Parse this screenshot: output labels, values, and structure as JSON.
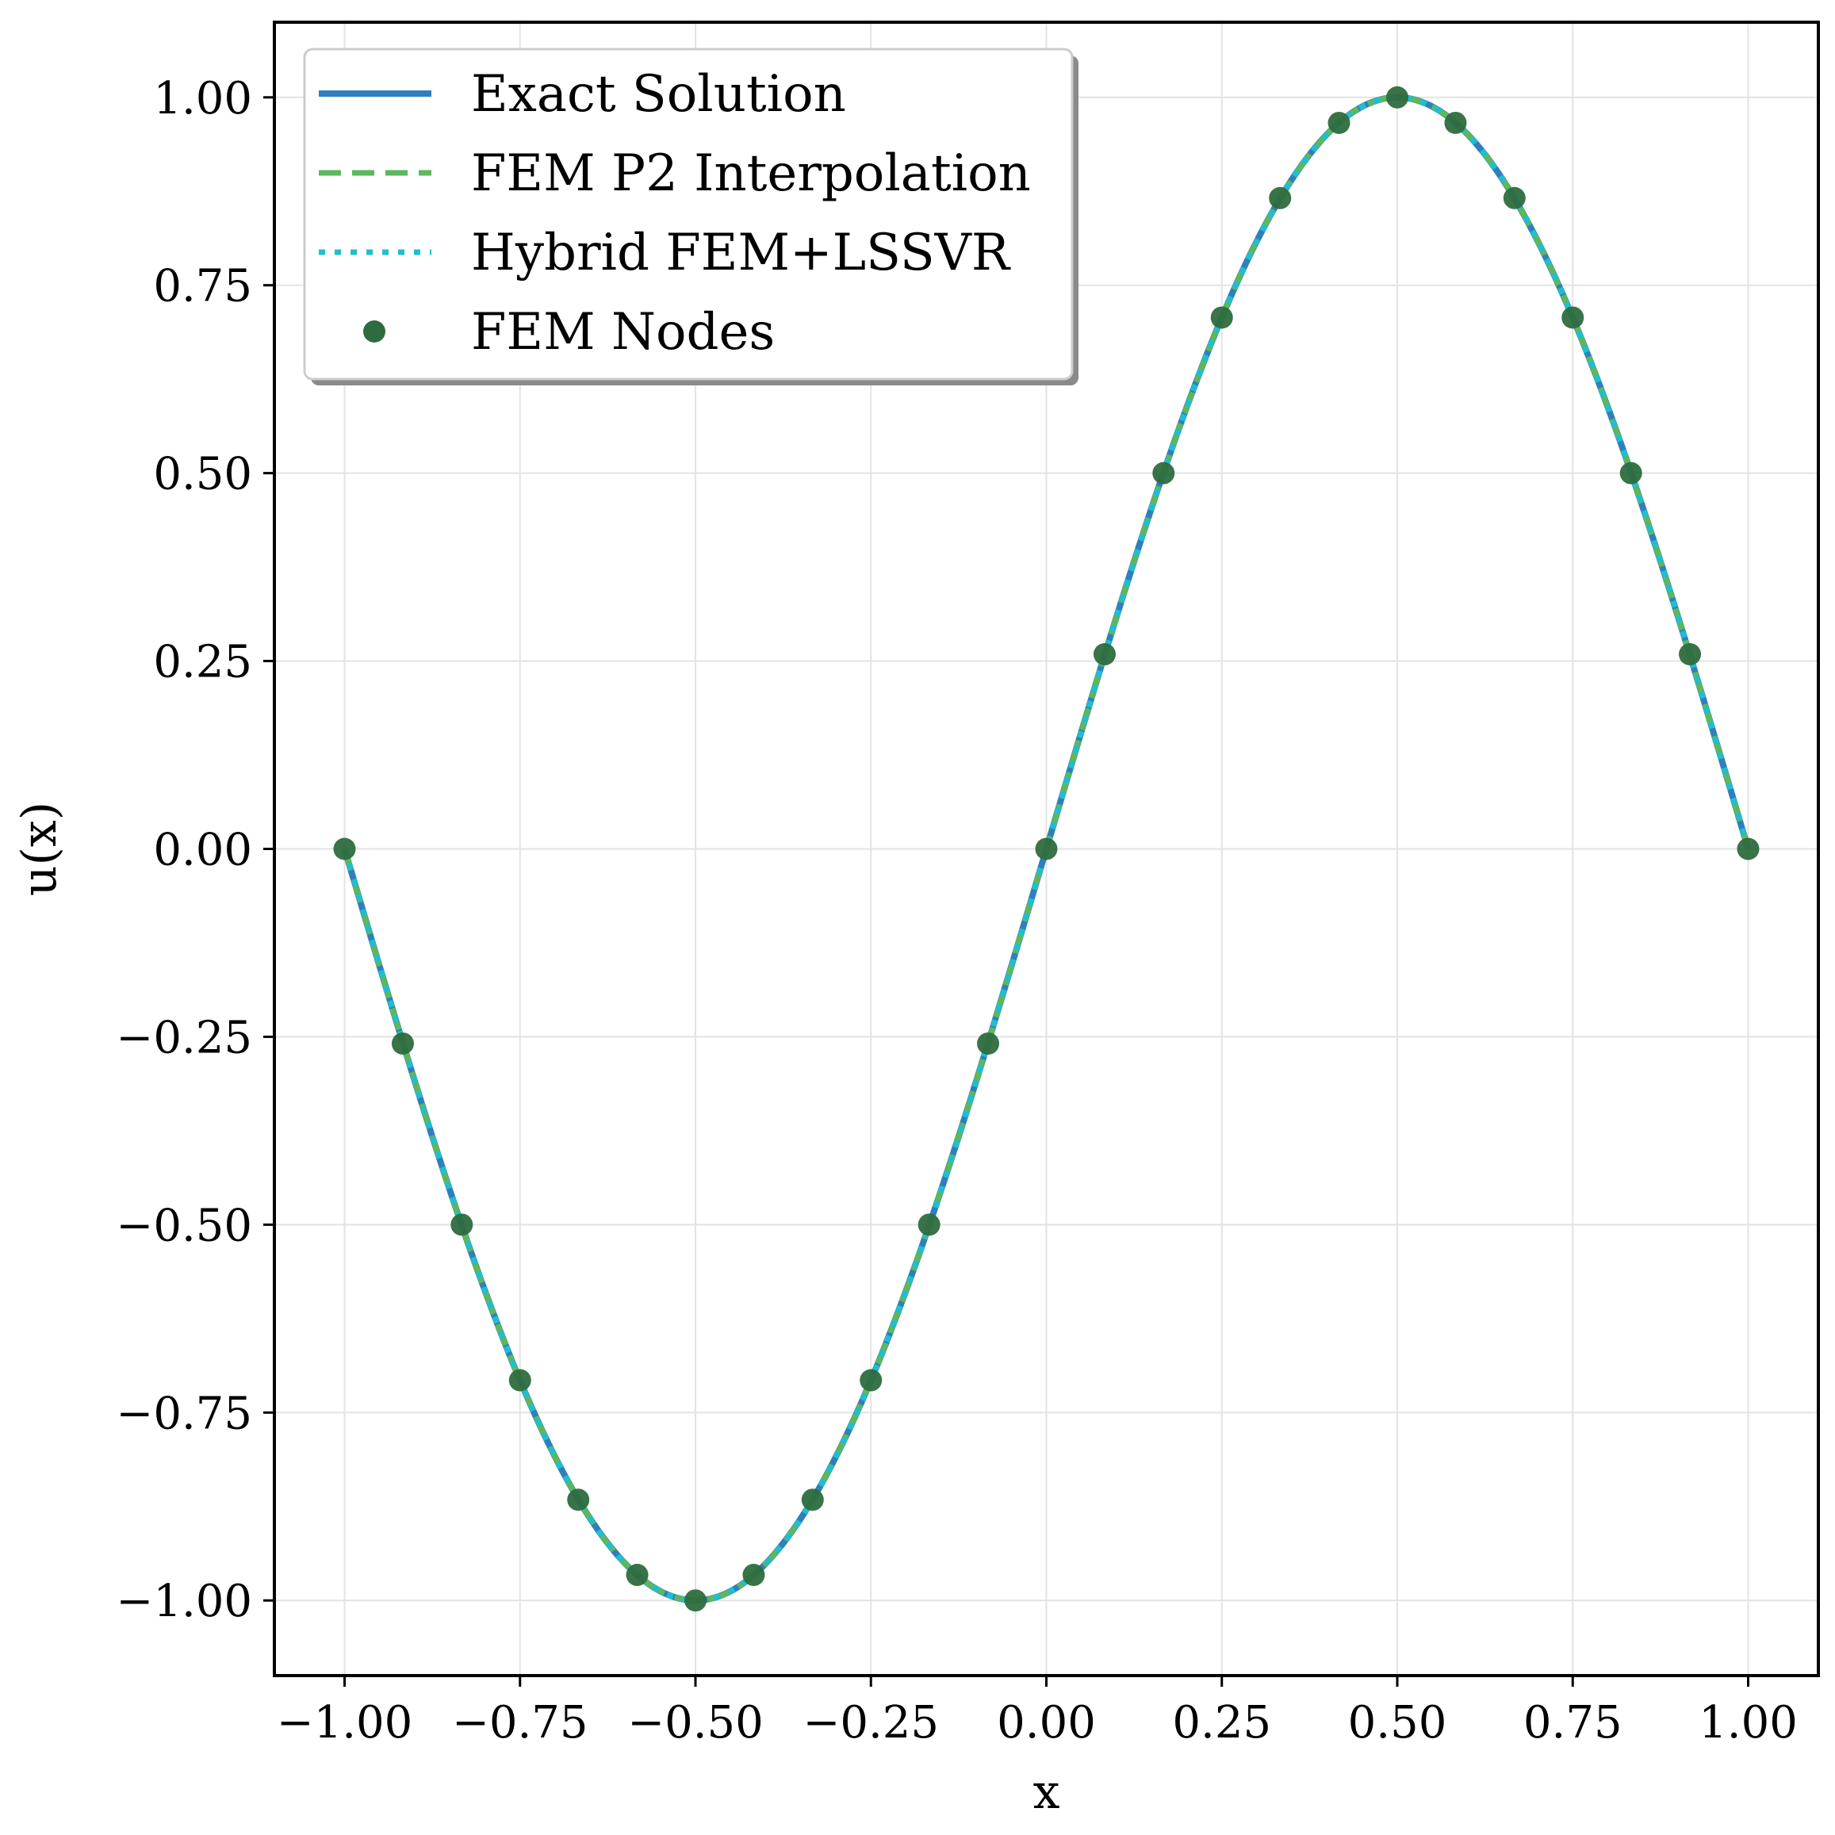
{
  "chart_data": {
    "type": "line",
    "title": "",
    "xlabel": "x",
    "ylabel": "u(x)",
    "xlim": [
      -1.1,
      1.1
    ],
    "ylim": [
      -1.1,
      1.1
    ],
    "grid": true,
    "legend_position": "top-left",
    "x_ticks": [
      -1.0,
      -0.75,
      -0.5,
      -0.25,
      0.0,
      0.25,
      0.5,
      0.75,
      1.0
    ],
    "x_tick_labels": [
      "−1.00",
      "−0.75",
      "−0.50",
      "−0.25",
      "0.00",
      "0.25",
      "0.50",
      "0.75",
      "1.00"
    ],
    "y_ticks": [
      -1.0,
      -0.75,
      -0.5,
      -0.25,
      0.0,
      0.25,
      0.5,
      0.75,
      1.0
    ],
    "y_tick_labels": [
      "−1.00",
      "−0.75",
      "−0.50",
      "−0.25",
      "0.00",
      "0.25",
      "0.50",
      "0.75",
      "1.00"
    ],
    "series": [
      {
        "name": "Exact Solution",
        "style": "solid",
        "color": "#2f7fbd",
        "function": "sin(pi*x)"
      },
      {
        "name": "FEM P2 Interpolation",
        "style": "dashed",
        "color": "#5cb85c",
        "function": "sin(pi*x)"
      },
      {
        "name": "Hybrid FEM+LSSVR",
        "style": "dotted",
        "color": "#1fbfcf",
        "function": "sin(pi*x)"
      },
      {
        "name": "FEM Nodes",
        "style": "scatter",
        "color": "#2e6b3e",
        "x": [
          -1.0,
          -0.917,
          -0.833,
          -0.75,
          -0.667,
          -0.583,
          -0.5,
          -0.417,
          -0.333,
          -0.25,
          -0.167,
          -0.083,
          0.0,
          0.083,
          0.167,
          0.25,
          0.333,
          0.417,
          0.5,
          0.583,
          0.667,
          0.75,
          0.833,
          0.917,
          1.0
        ],
        "y": [
          0.0,
          -0.259,
          -0.5,
          -0.707,
          -0.866,
          -0.966,
          -1.0,
          -0.966,
          -0.866,
          -0.707,
          -0.5,
          -0.259,
          0.0,
          0.259,
          0.5,
          0.707,
          0.866,
          0.966,
          1.0,
          0.966,
          0.866,
          0.707,
          0.5,
          0.259,
          0.0
        ]
      }
    ]
  }
}
